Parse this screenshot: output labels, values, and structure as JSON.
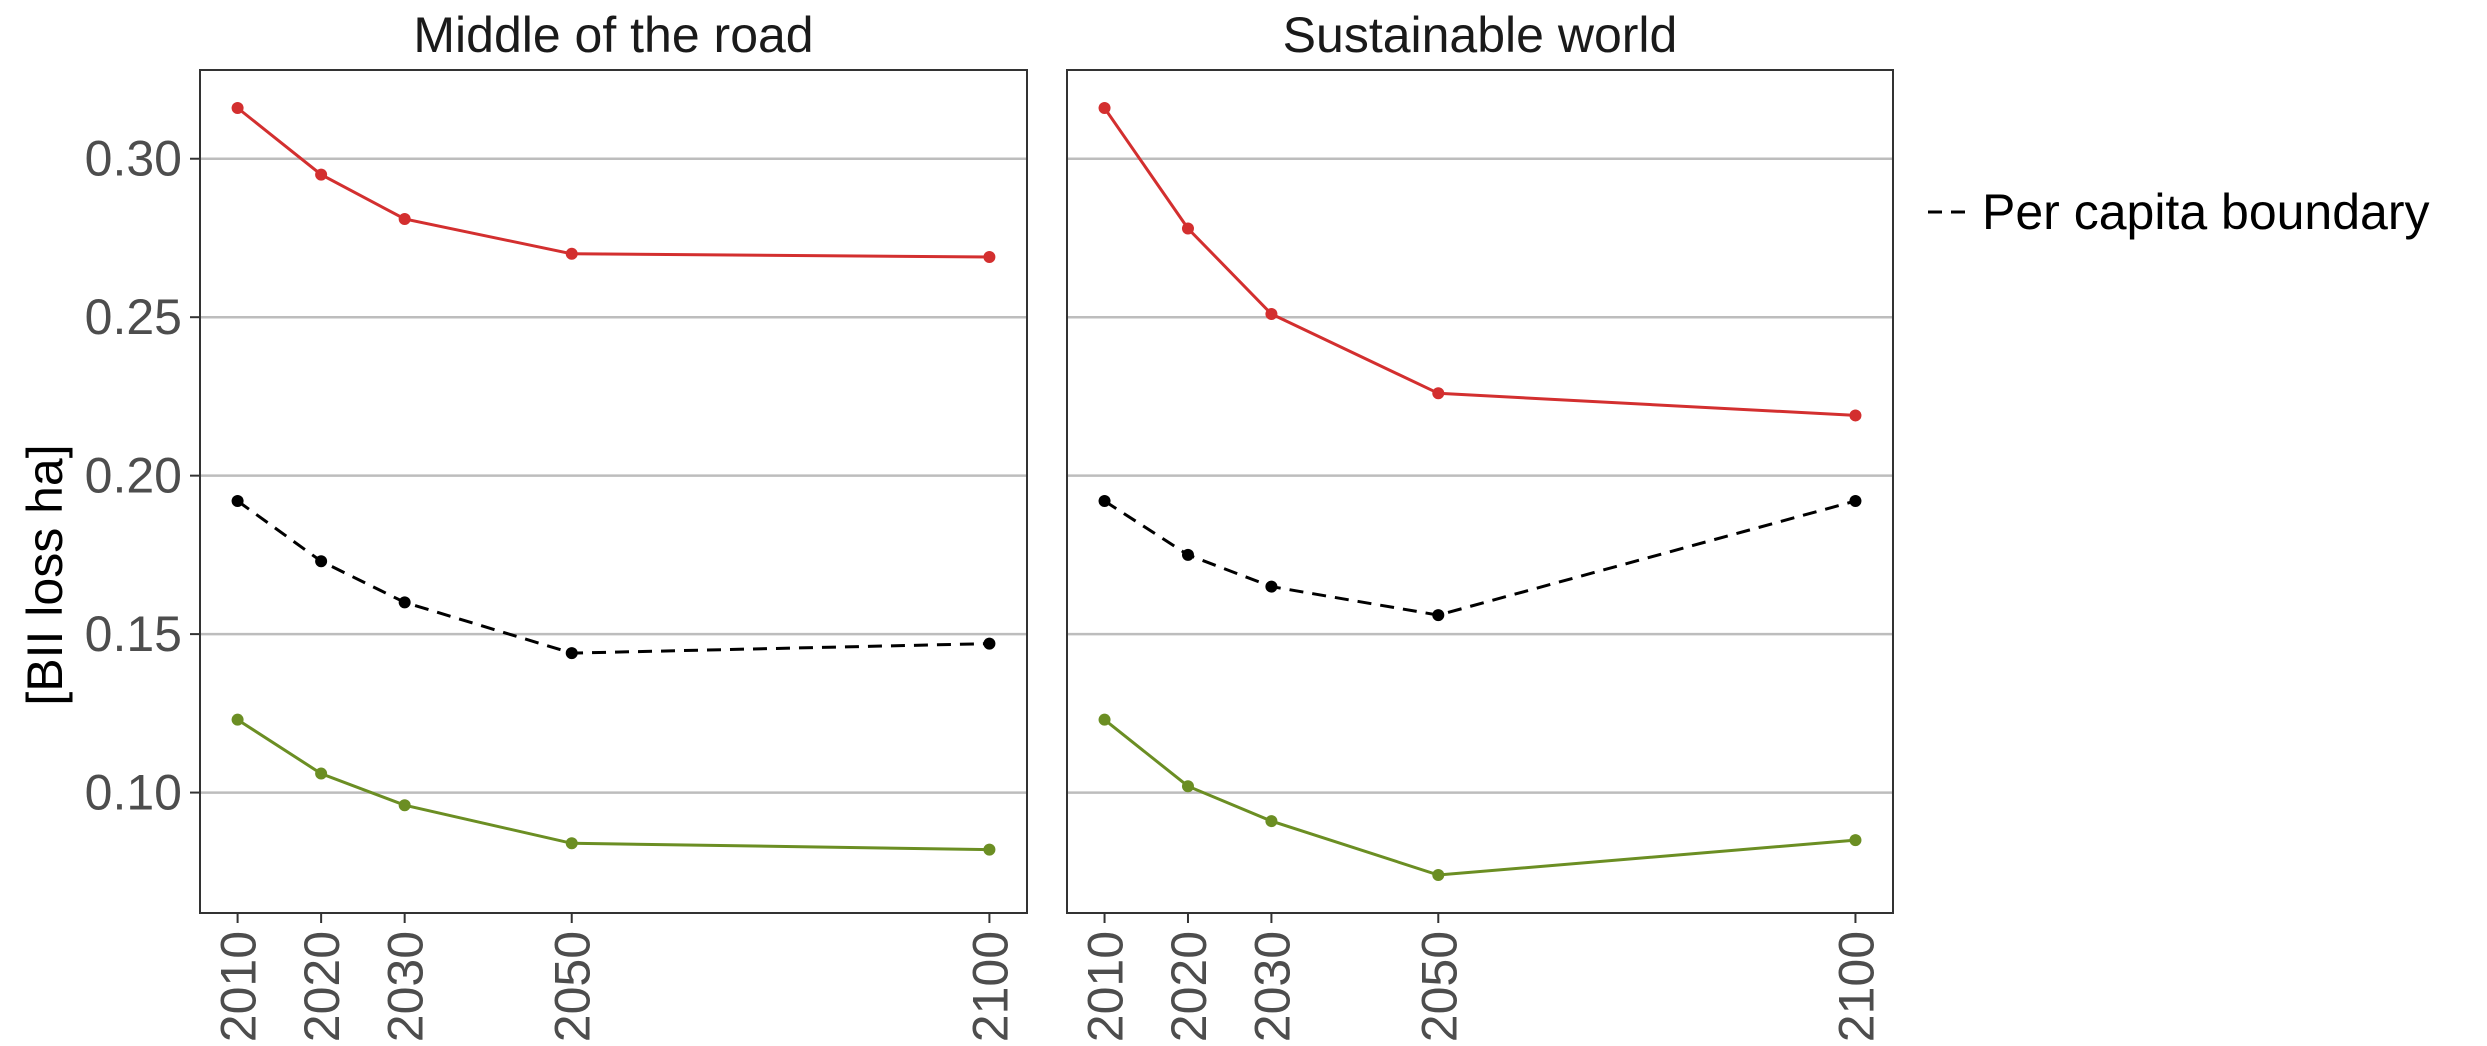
{
  "chart_data": {
    "type": "line",
    "ylabel": "[BII loss ha]",
    "ylim": [
      0.062,
      0.328
    ],
    "y_ticks": [
      0.1,
      0.15,
      0.2,
      0.25,
      0.3
    ],
    "y_tick_labels": [
      "0.10",
      "0.15",
      "0.20",
      "0.25",
      "0.30"
    ],
    "x_ticks": [
      2010,
      2020,
      2030,
      2050,
      2100
    ],
    "x_tick_labels": [
      "2010",
      "2020",
      "2030",
      "2050",
      "2100"
    ],
    "xlim": [
      2005.5,
      2104.5
    ],
    "grid": true,
    "legend": {
      "placement": "right",
      "entries": [
        {
          "label": "Per capita boundary",
          "style": "dashed",
          "color": "#000000"
        }
      ]
    },
    "panels": [
      {
        "title": "Middle of the road",
        "series": [
          {
            "color": "#d32f2f",
            "style": "solid",
            "x": [
              2010,
              2020,
              2030,
              2050,
              2100
            ],
            "values": [
              0.316,
              0.295,
              0.281,
              0.27,
              0.269
            ]
          },
          {
            "name": "Per capita boundary",
            "color": "#000000",
            "style": "dashed",
            "x": [
              2010,
              2020,
              2030,
              2050,
              2100
            ],
            "values": [
              0.192,
              0.173,
              0.16,
              0.144,
              0.147
            ]
          },
          {
            "color": "#6b8e23",
            "style": "solid",
            "x": [
              2010,
              2020,
              2030,
              2050,
              2100
            ],
            "values": [
              0.123,
              0.106,
              0.096,
              0.084,
              0.082
            ]
          }
        ]
      },
      {
        "title": "Sustainable world",
        "series": [
          {
            "color": "#d32f2f",
            "style": "solid",
            "x": [
              2010,
              2020,
              2030,
              2050,
              2100
            ],
            "values": [
              0.316,
              0.278,
              0.251,
              0.226,
              0.219
            ]
          },
          {
            "name": "Per capita boundary",
            "color": "#000000",
            "style": "dashed",
            "x": [
              2010,
              2020,
              2030,
              2050,
              2100
            ],
            "values": [
              0.192,
              0.175,
              0.165,
              0.156,
              0.192
            ]
          },
          {
            "color": "#6b8e23",
            "style": "solid",
            "x": [
              2010,
              2020,
              2030,
              2050,
              2100
            ],
            "values": [
              0.123,
              0.102,
              0.091,
              0.074,
              0.085
            ]
          }
        ]
      }
    ]
  }
}
